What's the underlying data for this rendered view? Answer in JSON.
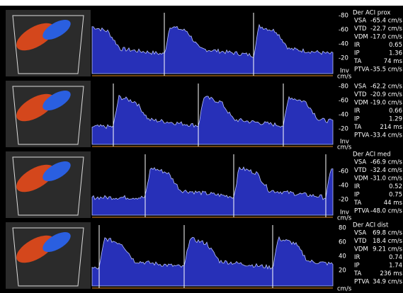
{
  "panels": [
    {
      "title": "Der ACI prox",
      "scale": [
        "-80",
        "-60",
        "-40",
        "-20"
      ],
      "unit_top": "Inv",
      "unit": "cm/s",
      "measurements": [
        {
          "label": "VSA",
          "value": "-65.4 cm/s"
        },
        {
          "label": "VTD",
          "value": "-22.7 cm/s"
        },
        {
          "label": "VDM",
          "value": "-17.0 cm/s"
        },
        {
          "label": "IR",
          "value": "0.65"
        },
        {
          "label": "IP",
          "value": "1.36"
        },
        {
          "label": "TA",
          "value": "74 ms"
        },
        {
          "label": "PTVA",
          "value": "-35.5 cm/s"
        }
      ]
    },
    {
      "scale": [
        "-80",
        "-60",
        "-40",
        "-20"
      ],
      "unit_top": "Inv",
      "unit": "cm/s",
      "measurements": [
        {
          "label": "VSA",
          "value": "-62.2 cm/s"
        },
        {
          "label": "VTD",
          "value": "-20.9 cm/s"
        },
        {
          "label": "VDM",
          "value": "-19.0 cm/s"
        },
        {
          "label": "IR",
          "value": "0.66"
        },
        {
          "label": "IP",
          "value": "1.29"
        },
        {
          "label": "TA",
          "value": "214 ms"
        },
        {
          "label": "PTVA",
          "value": "-33.4 cm/s"
        }
      ]
    },
    {
      "title": "Der ACI med",
      "scale": [
        "-60",
        "-40",
        "-20"
      ],
      "unit_top": "Inv",
      "unit": "cm/s",
      "measurements": [
        {
          "label": "VSA",
          "value": "-66.9 cm/s"
        },
        {
          "label": "VTD",
          "value": "-32.4 cm/s"
        },
        {
          "label": "VDM",
          "value": "-31.0 cm/s"
        },
        {
          "label": "IR",
          "value": "0.52"
        },
        {
          "label": "IP",
          "value": "0.75"
        },
        {
          "label": "TA",
          "value": "44 ms"
        },
        {
          "label": "PTVA",
          "value": "-48.0 cm/s"
        }
      ]
    },
    {
      "title": "Der ACI dist",
      "scale": [
        "80",
        "60",
        "40",
        "20"
      ],
      "unit": "cm/s",
      "measurements": [
        {
          "label": "VSA",
          "value": "69.8 cm/s"
        },
        {
          "label": "VTD",
          "value": "18.4 cm/s"
        },
        {
          "label": "VDM",
          "value": "9.21 cm/s"
        },
        {
          "label": "IR",
          "value": "0.74"
        },
        {
          "label": "IP",
          "value": "1.74"
        },
        {
          "label": "TA",
          "value": "236 ms"
        },
        {
          "label": "PTVA",
          "value": "34.9 cm/s"
        }
      ]
    }
  ]
}
